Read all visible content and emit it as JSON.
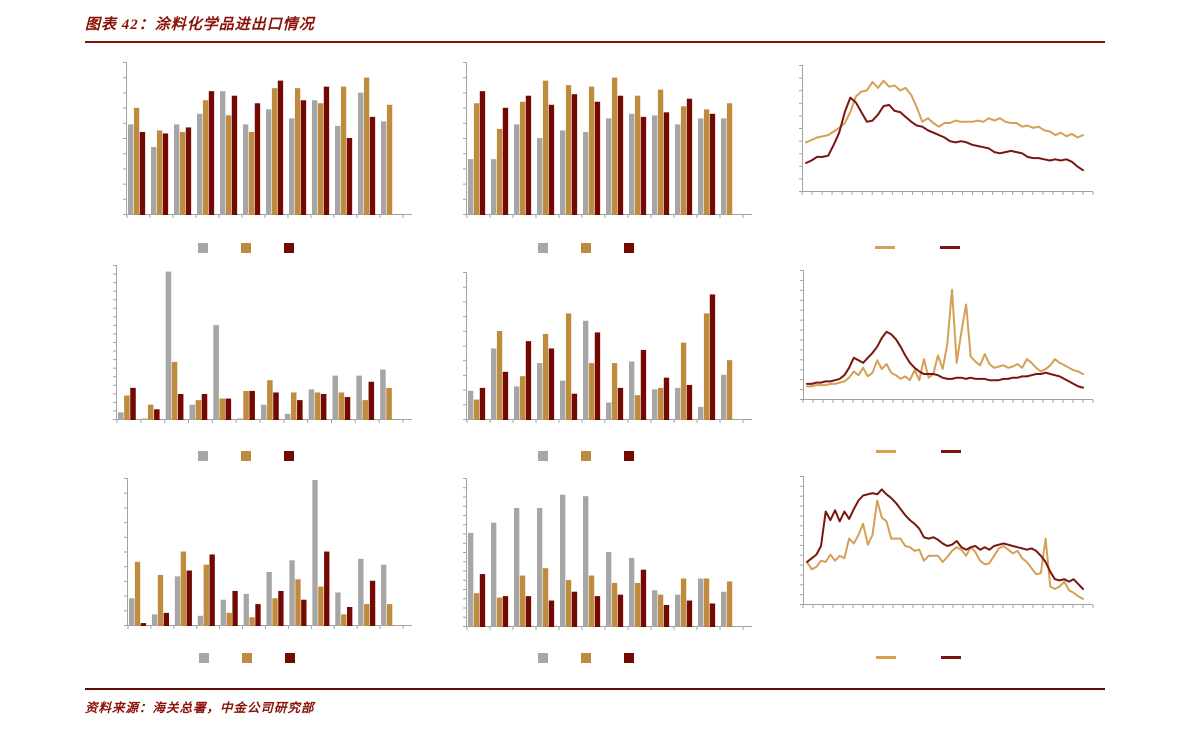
{
  "header": {
    "title": "图表 42：涂料化学品进出口情况"
  },
  "footer": {
    "source": "资料来源：海关总署，中金公司研究部"
  },
  "colors": {
    "bar_gray": "#A6A6A6",
    "bar_tan": "#BF8B3E",
    "bar_red": "#730900",
    "line_tan": "#D5A055",
    "line_red": "#7A150F",
    "axis": "#A3A3A3",
    "accent_red": "#8B1209",
    "rule_top": "#8B0E04",
    "rule_bottom": "#5E0B04"
  },
  "chart_data": [
    {
      "id": "row1-col1-grouped-bars",
      "type": "bar",
      "title": "",
      "xlabel": "",
      "ylabel": "",
      "ylim": [
        0,
        100
      ],
      "y_tick_count": 10,
      "grid": false,
      "legend_position": "bottom",
      "categories": [
        "",
        "",
        "",
        "",
        "",
        "",
        "",
        "",
        "",
        "",
        "",
        ""
      ],
      "series": [
        {
          "name": "gray",
          "color": "bar_gray",
          "values": [
            60,
            45,
            60,
            67,
            82,
            60,
            70,
            64,
            76,
            59,
            81,
            62
          ]
        },
        {
          "name": "tan",
          "color": "bar_tan",
          "values": [
            71,
            56,
            55,
            76,
            66,
            55,
            84,
            84,
            74,
            85,
            91,
            73
          ]
        },
        {
          "name": "dark-red",
          "color": "bar_red",
          "values": [
            55,
            54,
            58,
            82,
            79,
            74,
            89,
            76,
            85,
            51,
            65,
            0
          ]
        }
      ]
    },
    {
      "id": "row1-col2-grouped-bars",
      "type": "bar",
      "title": "",
      "xlabel": "",
      "ylabel": "",
      "ylim": [
        0,
        100
      ],
      "y_tick_count": 10,
      "grid": false,
      "legend_position": "bottom",
      "categories": [
        "",
        "",
        "",
        "",
        "",
        "",
        "",
        "",
        "",
        "",
        "",
        ""
      ],
      "series": [
        {
          "name": "gray",
          "color": "bar_gray",
          "values": [
            37,
            37,
            60,
            51,
            56,
            55,
            64,
            67,
            66,
            60,
            64,
            64
          ]
        },
        {
          "name": "tan",
          "color": "bar_tan",
          "values": [
            74,
            57,
            75,
            89,
            86,
            85,
            91,
            79,
            83,
            72,
            70,
            74
          ]
        },
        {
          "name": "dark-red",
          "color": "bar_red",
          "values": [
            82,
            71,
            79,
            73,
            80,
            75,
            79,
            65,
            68,
            77,
            67,
            0
          ]
        }
      ]
    },
    {
      "id": "row1-col3-lines",
      "type": "line",
      "title": "",
      "xlabel": "",
      "ylabel": "",
      "ylim": [
        0,
        100
      ],
      "y_tick_count": 10,
      "x_tick_count": 29,
      "grid": false,
      "legend_position": "bottom",
      "series": [
        {
          "name": "tan-line",
          "color": "line_tan",
          "values": [
            41,
            43,
            45,
            46,
            47,
            50,
            53,
            57,
            66,
            79,
            83,
            84,
            91,
            86,
            92,
            87,
            88,
            84,
            86,
            80,
            70,
            58,
            61,
            57,
            54,
            57,
            57,
            59,
            58,
            58,
            58,
            59,
            58,
            61,
            59,
            61,
            58,
            57,
            57,
            54,
            55,
            53,
            54,
            51,
            50,
            47,
            49,
            46,
            48,
            45,
            47
          ]
        },
        {
          "name": "dark-red-line",
          "color": "line_red",
          "values": [
            24,
            26,
            29,
            29,
            30,
            39,
            49,
            66,
            78,
            74,
            66,
            58,
            59,
            64,
            71,
            72,
            67,
            66,
            62,
            58,
            55,
            54,
            51,
            49,
            47,
            45,
            42,
            41,
            42,
            41,
            39,
            38,
            37,
            36,
            33,
            32,
            33,
            34,
            33,
            32,
            29,
            28,
            28,
            27,
            26,
            27,
            26,
            27,
            25,
            21,
            18
          ]
        }
      ]
    },
    {
      "id": "row2-col1-grouped-bars",
      "type": "bar",
      "title": "",
      "xlabel": "",
      "ylabel": "",
      "ylim": [
        0,
        100
      ],
      "y_tick_count": 18,
      "grid": false,
      "legend_position": "bottom",
      "categories": [
        "",
        "",
        "",
        "",
        "",
        "",
        "",
        "",
        "",
        "",
        "",
        ""
      ],
      "series": [
        {
          "name": "gray",
          "color": "bar_gray",
          "values": [
            5,
            1,
            97,
            10,
            62,
            1,
            10,
            4,
            20,
            29,
            29,
            33
          ]
        },
        {
          "name": "tan",
          "color": "bar_tan",
          "values": [
            16,
            10,
            38,
            13,
            14,
            19,
            26,
            18,
            18,
            18,
            13,
            21
          ]
        },
        {
          "name": "dark-red",
          "color": "bar_red",
          "values": [
            21,
            7,
            17,
            17,
            14,
            19,
            18,
            13,
            17,
            15,
            25,
            0
          ]
        }
      ]
    },
    {
      "id": "row2-col2-grouped-bars",
      "type": "bar",
      "title": "",
      "xlabel": "",
      "ylabel": "",
      "ylim": [
        0,
        100
      ],
      "y_tick_count": 10,
      "grid": false,
      "legend_position": "bottom",
      "categories": [
        "",
        "",
        "",
        "",
        "",
        "",
        "",
        "",
        "",
        "",
        "",
        ""
      ],
      "series": [
        {
          "name": "gray",
          "color": "bar_gray",
          "values": [
            20,
            49,
            23,
            39,
            27,
            68,
            12,
            40,
            21,
            22,
            9,
            31
          ]
        },
        {
          "name": "tan",
          "color": "bar_tan",
          "values": [
            14,
            61,
            30,
            59,
            73,
            39,
            39,
            17,
            22,
            53,
            73,
            41
          ]
        },
        {
          "name": "dark-red",
          "color": "bar_red",
          "values": [
            22,
            33,
            54,
            49,
            18,
            60,
            22,
            48,
            29,
            24,
            86,
            0
          ]
        }
      ]
    },
    {
      "id": "row2-col3-lines",
      "type": "line",
      "title": "",
      "xlabel": "",
      "ylabel": "",
      "ylim": [
        0,
        100
      ],
      "y_tick_count": 13,
      "x_tick_count": 29,
      "grid": false,
      "legend_position": "bottom",
      "series": [
        {
          "name": "tan-line",
          "color": "line_tan",
          "values": [
            11,
            11,
            12,
            12,
            12,
            13,
            13,
            14,
            15,
            18,
            23,
            20,
            26,
            19,
            22,
            32,
            25,
            29,
            22,
            20,
            17,
            19,
            16,
            24,
            16,
            33,
            18,
            21,
            36,
            25,
            45,
            89,
            30,
            55,
            77,
            35,
            31,
            28,
            37,
            29,
            26,
            27,
            28,
            26,
            27,
            29,
            26,
            33,
            30,
            26,
            23,
            25,
            28,
            33,
            30,
            28,
            26,
            24,
            23,
            21
          ]
        },
        {
          "name": "dark-red-line",
          "color": "line_red",
          "values": [
            13,
            13,
            14,
            14,
            15,
            15,
            16,
            17,
            20,
            26,
            34,
            32,
            30,
            34,
            38,
            43,
            50,
            55,
            53,
            49,
            43,
            36,
            30,
            26,
            23,
            21,
            21,
            21,
            20,
            18,
            17,
            17,
            18,
            18,
            17,
            18,
            17,
            17,
            17,
            16,
            16,
            16,
            17,
            17,
            18,
            18,
            19,
            19,
            20,
            21,
            21,
            22,
            21,
            20,
            19,
            17,
            15,
            13,
            11,
            10
          ]
        }
      ]
    },
    {
      "id": "row3-col1-grouped-bars",
      "type": "bar",
      "title": "",
      "xlabel": "",
      "ylabel": "",
      "ylim": [
        0,
        100
      ],
      "y_tick_count": 10,
      "grid": false,
      "legend_position": "bottom",
      "categories": [
        "",
        "",
        "",
        "",
        "",
        "",
        "",
        "",
        "",
        "",
        "",
        ""
      ],
      "series": [
        {
          "name": "gray",
          "color": "bar_gray",
          "values": [
            19,
            8,
            34,
            7,
            18,
            22,
            37,
            45,
            100,
            23,
            46,
            42
          ]
        },
        {
          "name": "tan",
          "color": "bar_tan",
          "values": [
            44,
            35,
            51,
            42,
            9,
            6,
            19,
            32,
            27,
            8,
            15,
            15
          ]
        },
        {
          "name": "dark-red",
          "color": "bar_red",
          "values": [
            2,
            9,
            38,
            49,
            24,
            15,
            24,
            18,
            51,
            13,
            31,
            0
          ]
        }
      ]
    },
    {
      "id": "row3-col2-grouped-bars",
      "type": "bar",
      "title": "",
      "xlabel": "",
      "ylabel": "",
      "ylim": [
        0,
        100
      ],
      "y_tick_count": 16,
      "grid": false,
      "legend_position": "bottom",
      "categories": [
        "",
        "",
        "",
        "",
        "",
        "",
        "",
        "",
        "",
        "",
        "",
        ""
      ],
      "series": [
        {
          "name": "gray",
          "color": "bar_gray",
          "values": [
            64,
            71,
            81,
            81,
            90,
            89,
            51,
            47,
            25,
            22,
            33,
            24
          ]
        },
        {
          "name": "tan",
          "color": "bar_tan",
          "values": [
            23,
            20,
            35,
            40,
            32,
            35,
            30,
            30,
            22,
            33,
            33,
            31
          ]
        },
        {
          "name": "dark-red",
          "color": "bar_red",
          "values": [
            36,
            21,
            21,
            18,
            24,
            21,
            22,
            39,
            15,
            18,
            16,
            0
          ]
        }
      ]
    },
    {
      "id": "row3-col3-lines",
      "type": "line",
      "title": "",
      "xlabel": "",
      "ylabel": "",
      "ylim": [
        0,
        100
      ],
      "y_tick_count": 13,
      "x_tick_count": 29,
      "grid": false,
      "legend_position": "bottom",
      "series": [
        {
          "name": "tan-line",
          "color": "line_tan",
          "values": [
            35,
            29,
            31,
            36,
            35,
            41,
            36,
            40,
            38,
            54,
            50,
            57,
            66,
            49,
            57,
            85,
            71,
            68,
            54,
            54,
            54,
            48,
            47,
            44,
            45,
            36,
            40,
            40,
            40,
            35,
            39,
            44,
            47,
            45,
            40,
            47,
            43,
            36,
            33,
            34,
            40,
            46,
            48,
            45,
            42,
            44,
            38,
            35,
            30,
            25,
            26,
            54,
            15,
            13,
            15,
            19,
            12,
            10,
            7,
            5
          ]
        },
        {
          "name": "dark-red-line",
          "color": "line_red",
          "values": [
            35,
            38,
            41,
            48,
            76,
            69,
            77,
            68,
            76,
            70,
            78,
            85,
            89,
            90,
            91,
            90,
            94,
            90,
            87,
            83,
            78,
            73,
            69,
            66,
            62,
            55,
            54,
            55,
            53,
            50,
            48,
            49,
            52,
            47,
            45,
            47,
            48,
            45,
            47,
            45,
            48,
            49,
            50,
            49,
            48,
            47,
            46,
            45,
            46,
            44,
            40,
            35,
            27,
            21,
            20,
            21,
            19,
            21,
            17,
            13
          ]
        }
      ]
    }
  ]
}
